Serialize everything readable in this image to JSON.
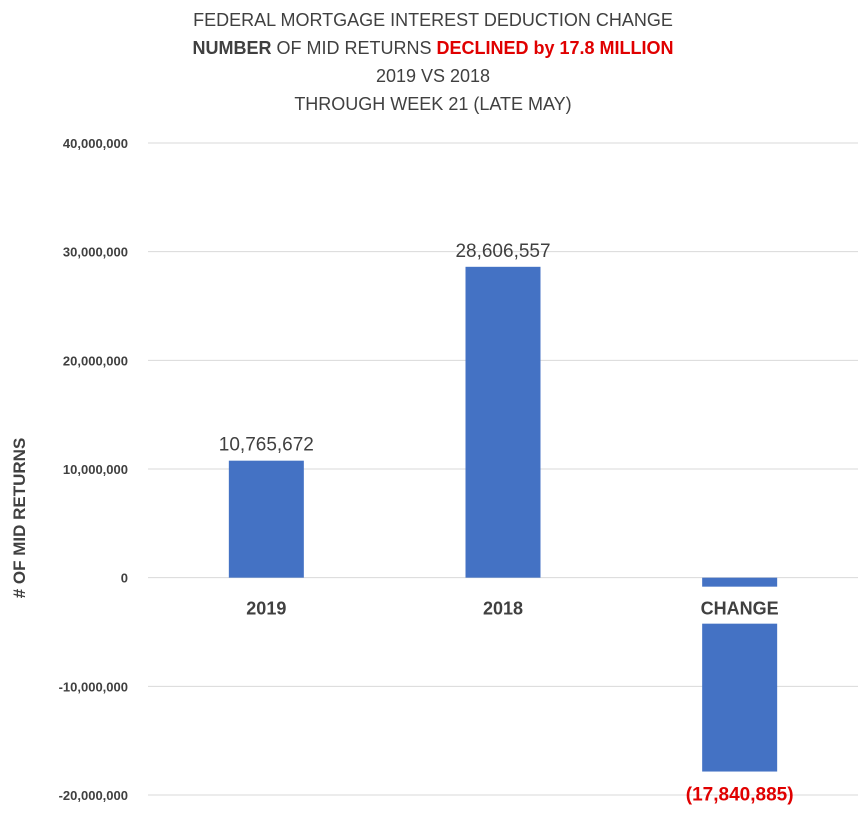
{
  "title": {
    "line1": "FEDERAL MORTGAGE INTEREST DEDUCTION CHANGE",
    "line2_bold": "NUMBER",
    "line2_rest": " OF MID RETURNS ",
    "line2_highlight": "DECLINED by 17.8 MILLION",
    "line3": "2019 VS 2018",
    "line4": "THROUGH WEEK 21 (LATE MAY)"
  },
  "chart_data": {
    "type": "bar",
    "categories": [
      "2019",
      "2018",
      "CHANGE"
    ],
    "values": [
      10765672,
      28606557,
      -17840885
    ],
    "data_labels": [
      "10,765,672",
      "28,606,557",
      "(17,840,885)"
    ],
    "ylabel": "# OF MID RETURNS",
    "xlabel": "",
    "ylim": [
      -20000000,
      40000000
    ],
    "yticks": [
      40000000,
      30000000,
      20000000,
      10000000,
      0,
      -10000000,
      -20000000
    ],
    "ytick_labels": [
      "40,000,000",
      "30,000,000",
      "20,000,000",
      "10,000,000",
      "0",
      "-10,000,000",
      "-20,000,000"
    ],
    "grid": true,
    "legend": "none",
    "bar_color": "#4472c4",
    "negative_label_color": "#e00000",
    "gridline_color": "#d9d9d9"
  }
}
